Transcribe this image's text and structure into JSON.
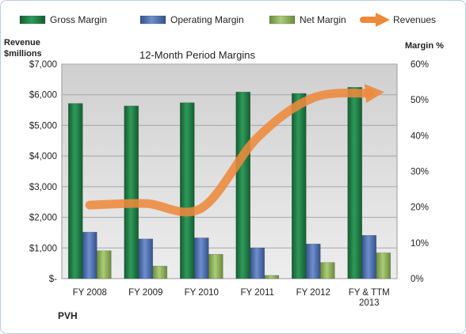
{
  "chart_data": {
    "type": "bar",
    "title": "12-Month Period Margins",
    "company": "PVH",
    "left_axis": {
      "label_line1": "Revenue",
      "label_line2": "$millions",
      "range": [
        0,
        7000
      ],
      "ticks": [
        "$-",
        "$1,000",
        "$2,000",
        "$3,000",
        "$4,000",
        "$5,000",
        "$6,000",
        "$7,000"
      ]
    },
    "right_axis": {
      "label": "Margin %",
      "range": [
        0,
        60
      ],
      "ticks": [
        "0%",
        "10%",
        "20%",
        "30%",
        "40%",
        "50%",
        "60%"
      ]
    },
    "categories": [
      [
        "FY 2008"
      ],
      [
        "FY 2009"
      ],
      [
        "FY 2010"
      ],
      [
        "FY 2011"
      ],
      [
        "FY 2012"
      ],
      [
        "FY & TTM",
        "2013"
      ]
    ],
    "series": [
      {
        "name": "Gross Margin",
        "kind": "bar",
        "axis": "right",
        "color": "#1e7a44",
        "values": [
          49,
          48.3,
          49.2,
          52.2,
          51.8,
          53.5
        ]
      },
      {
        "name": "Operating Margin",
        "kind": "bar",
        "axis": "right",
        "color": "#4f72b3",
        "values": [
          13,
          11.1,
          11.4,
          8.6,
          9.7,
          12.1
        ]
      },
      {
        "name": "Net Margin",
        "kind": "bar",
        "axis": "right",
        "color": "#8db35a",
        "values": [
          7.8,
          3.5,
          6.8,
          0.9,
          4.5,
          7.2
        ]
      },
      {
        "name": "Revenues",
        "kind": "line",
        "axis": "left",
        "color": "#ed8a3c",
        "values": [
          2400,
          2450,
          2300,
          4600,
          5900,
          6050
        ]
      }
    ],
    "grid": true,
    "legend_position": "top"
  }
}
